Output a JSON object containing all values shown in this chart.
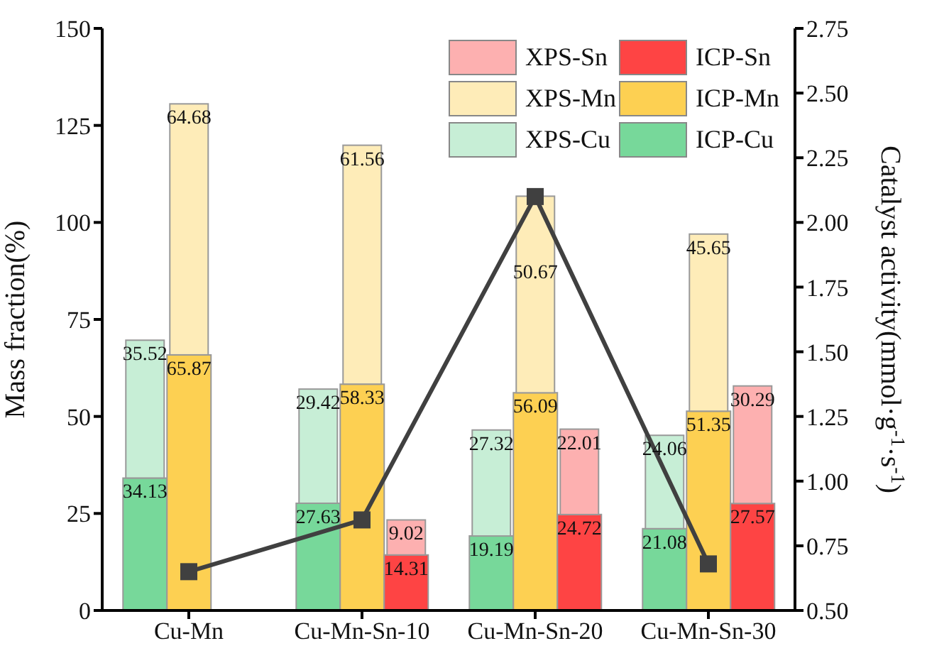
{
  "chart_data": {
    "type": "bar",
    "categories": [
      "Cu-Mn",
      "Cu-Mn-Sn-10",
      "Cu-Mn-Sn-20",
      "Cu-Mn-Sn-30"
    ],
    "ylabel": "Mass fraction(%)",
    "y2label": "Catalyst activity(mmol·g$^{-1}$·s$^{-1}$)",
    "ylim": [
      0,
      150
    ],
    "yticks": [
      0,
      25,
      50,
      75,
      100,
      125,
      150
    ],
    "y2lim": [
      0.5,
      2.75
    ],
    "y2ticks": [
      {
        "value": 0.5,
        "label": "0.50"
      },
      {
        "value": 0.75,
        "label": "0.75"
      },
      {
        "value": 1,
        "label": "1.00"
      },
      {
        "value": 1.25,
        "label": "1.25"
      },
      {
        "value": 1.5,
        "label": "1.50"
      },
      {
        "value": 1.75,
        "label": "1.75"
      },
      {
        "value": 2,
        "label": "2.00"
      },
      {
        "value": 2.25,
        "label": "2.25"
      },
      {
        "value": 2.5,
        "label": "2.50"
      },
      {
        "value": 2.75,
        "label": "2.75"
      }
    ],
    "legend": "top right",
    "series": [
      {
        "name": "ICP-Cu",
        "color": "#77d89a",
        "values": [
          34.13,
          27.63,
          19.19,
          21.08
        ],
        "value_labels": [
          "34.13",
          "27.63",
          "19.19",
          "21.08"
        ]
      },
      {
        "name": "XPS-Cu",
        "color": "#c7eed6",
        "values": [
          35.52,
          29.42,
          27.32,
          24.06
        ],
        "base": [
          34.13,
          27.63,
          19.19,
          21.08
        ],
        "value_labels": [
          "35.52",
          "29.42",
          "27.32",
          "24.06"
        ]
      },
      {
        "name": "ICP-Mn",
        "color": "#fdd052",
        "values": [
          65.87,
          58.33,
          56.09,
          51.35
        ],
        "value_labels": [
          "65.87",
          "58.33",
          "56.09",
          "51.35"
        ]
      },
      {
        "name": "XPS-Mn",
        "color": "#feecb8",
        "values": [
          64.68,
          61.56,
          50.67,
          45.65
        ],
        "base": [
          65.87,
          58.33,
          56.09,
          51.35
        ],
        "value_labels": [
          "64.68",
          "61.56",
          "50.67",
          "45.65"
        ]
      },
      {
        "name": "ICP-Sn",
        "color": "#fe4444",
        "values": [
          null,
          14.31,
          24.72,
          27.57
        ],
        "value_labels": [
          null,
          "14.31",
          "24.72",
          "27.57"
        ]
      },
      {
        "name": "XPS-Sn",
        "color": "#fdb0b0",
        "values": [
          null,
          9.02,
          22.01,
          30.29
        ],
        "base": [
          null,
          14.31,
          24.72,
          27.57
        ],
        "value_labels": [
          null,
          "9.02",
          "22.01",
          "30.29"
        ]
      },
      {
        "type": "line",
        "axis": "y2",
        "color": "#404040",
        "marker": "square",
        "line_style": "solid",
        "values": [
          0.65,
          0.85,
          2.1,
          0.68
        ]
      }
    ]
  }
}
